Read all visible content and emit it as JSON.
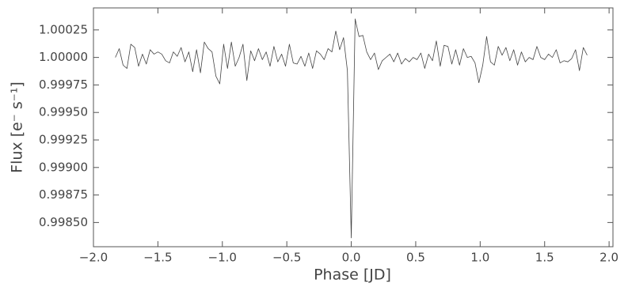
{
  "chart_data": {
    "type": "line",
    "xlabel": "Phase [JD]",
    "ylabel": "Flux [e⁻ s⁻¹]",
    "color": "#444444",
    "x": [
      -1.83,
      -1.8,
      -1.77,
      -1.74,
      -1.71,
      -1.68,
      -1.65,
      -1.62,
      -1.59,
      -1.56,
      -1.53,
      -1.5,
      -1.47,
      -1.44,
      -1.41,
      -1.38,
      -1.35,
      -1.32,
      -1.29,
      -1.26,
      -1.23,
      -1.2,
      -1.17,
      -1.14,
      -1.11,
      -1.08,
      -1.05,
      -1.02,
      -0.99,
      -0.96,
      -0.93,
      -0.9,
      -0.87,
      -0.84,
      -0.81,
      -0.78,
      -0.75,
      -0.72,
      -0.69,
      -0.66,
      -0.63,
      -0.6,
      -0.57,
      -0.54,
      -0.51,
      -0.48,
      -0.45,
      -0.42,
      -0.39,
      -0.36,
      -0.33,
      -0.3,
      -0.27,
      -0.24,
      -0.21,
      -0.18,
      -0.15,
      -0.12,
      -0.09,
      -0.06,
      -0.03,
      0.0,
      0.03,
      0.06,
      0.09,
      0.12,
      0.15,
      0.18,
      0.21,
      0.24,
      0.27,
      0.3,
      0.33,
      0.36,
      0.39,
      0.42,
      0.45,
      0.48,
      0.51,
      0.54,
      0.57,
      0.6,
      0.63,
      0.66,
      0.69,
      0.72,
      0.75,
      0.78,
      0.81,
      0.84,
      0.87,
      0.9,
      0.93,
      0.96,
      0.99,
      1.02,
      1.05,
      1.08,
      1.11,
      1.14,
      1.17,
      1.2,
      1.23,
      1.26,
      1.29,
      1.32,
      1.35,
      1.38,
      1.41,
      1.44,
      1.47,
      1.5,
      1.53,
      1.56,
      1.59,
      1.62,
      1.65,
      1.68,
      1.71,
      1.74,
      1.77,
      1.8,
      1.83
    ],
    "values": [
      1.0,
      1.00008,
      0.99993,
      0.9999,
      1.00012,
      1.00009,
      0.99992,
      1.00003,
      0.99994,
      1.00007,
      1.00003,
      1.00005,
      1.00003,
      0.99997,
      0.99995,
      1.00005,
      1.00001,
      1.00009,
      0.99996,
      1.00005,
      0.99987,
      1.00007,
      0.99986,
      1.00014,
      1.00008,
      1.00005,
      0.99983,
      0.99976,
      1.00012,
      0.9999,
      1.00014,
      0.99992,
      1.0,
      1.00012,
      0.99979,
      1.00006,
      0.99997,
      1.00008,
      0.99998,
      1.00005,
      0.99992,
      1.0001,
      0.99996,
      1.00003,
      0.99992,
      1.00012,
      0.99995,
      0.99994,
      1.00001,
      0.99992,
      1.00004,
      0.9999,
      1.00006,
      1.00003,
      0.99998,
      1.00008,
      1.00005,
      1.00024,
      1.00007,
      1.00018,
      0.99988,
      0.99836,
      1.00035,
      1.00019,
      1.0002,
      1.00005,
      0.99998,
      1.00004,
      0.99989,
      0.99997,
      1.0,
      1.00003,
      0.99996,
      1.00004,
      0.99994,
      0.99999,
      0.99996,
      1.0,
      0.99998,
      1.00004,
      0.9999,
      1.00003,
      0.99997,
      1.00015,
      0.99992,
      1.00011,
      1.0001,
      0.99994,
      1.00007,
      0.99993,
      1.00008,
      1.0,
      1.00001,
      0.99995,
      0.99977,
      0.99993,
      1.00019,
      0.99996,
      0.99993,
      1.0001,
      1.00002,
      1.00009,
      0.99997,
      1.00007,
      0.99993,
      1.00005,
      0.99996,
      1.0,
      0.99998,
      1.0001,
      1.0,
      0.99998,
      1.00003,
      1.0,
      1.00007,
      0.99995,
      0.99997,
      0.99996,
      0.99999,
      1.00007,
      0.99988,
      1.00009,
      1.00002
    ],
    "xlim": [
      -2.0,
      2.03
    ],
    "ylim": [
      0.99828,
      1.00045
    ],
    "xticks": [
      {
        "value": -2.0,
        "label": "−2.0"
      },
      {
        "value": -1.5,
        "label": "−1.5"
      },
      {
        "value": -1.0,
        "label": "−1.0"
      },
      {
        "value": -0.5,
        "label": "−0.5"
      },
      {
        "value": 0,
        "label": "0.0"
      },
      {
        "value": 0.5,
        "label": "0.5"
      },
      {
        "value": 1,
        "label": "1.0"
      },
      {
        "value": 1.5,
        "label": "1.5"
      },
      {
        "value": 2,
        "label": "2.0"
      }
    ],
    "yticks": [
      {
        "value": 0.9985,
        "label": "0.99850"
      },
      {
        "value": 0.99875,
        "label": "0.99875"
      },
      {
        "value": 0.999,
        "label": "0.99900"
      },
      {
        "value": 0.99925,
        "label": "0.99925"
      },
      {
        "value": 0.9995,
        "label": "0.99950"
      },
      {
        "value": 0.99975,
        "label": "0.99975"
      },
      {
        "value": 1,
        "label": "1.00000"
      },
      {
        "value": 1.00025,
        "label": "1.00025"
      }
    ],
    "grid": false
  }
}
